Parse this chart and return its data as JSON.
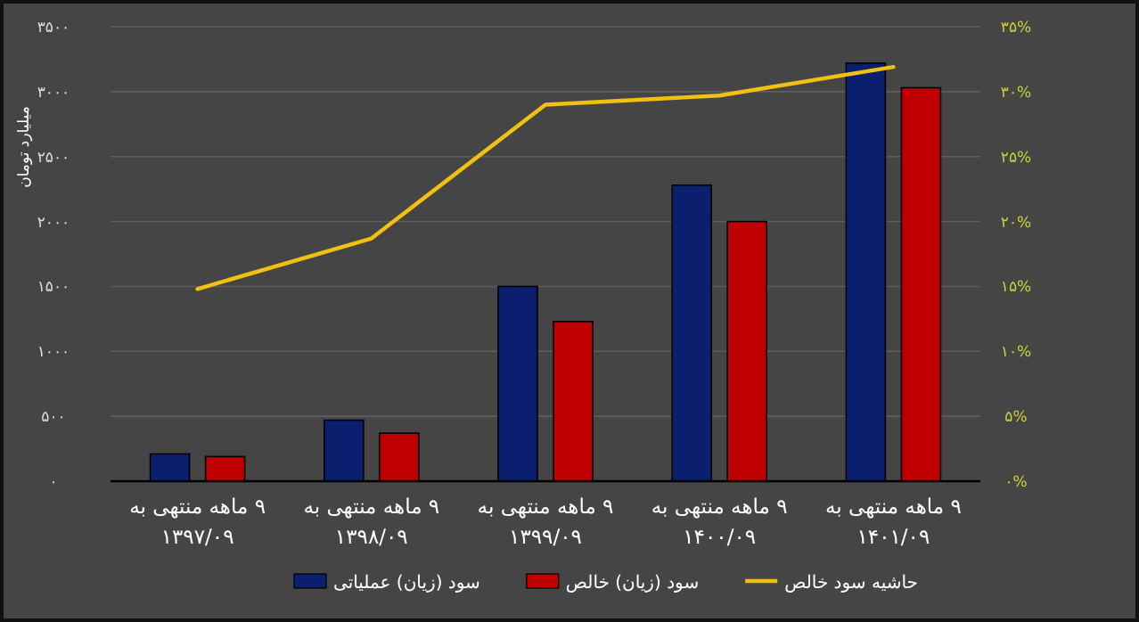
{
  "chart_data": {
    "type": "bar",
    "ylabel": "میلیارد تومان",
    "categories": [
      "۹ ماهه منتهی به ۱۳۹۷/۰۹",
      "۹ ماهه منتهی به ۱۳۹۸/۰۹",
      "۹ ماهه منتهی به ۱۳۹۹/۰۹",
      "۹ ماهه منتهی به ۱۴۰۰/۰۹",
      "۹ ماهه منتهی به ۱۴۰۱/۰۹"
    ],
    "series": [
      {
        "name": "سود (زیان) عملیاتی",
        "color": "#0a1f6e",
        "values": [
          210,
          470,
          1500,
          2280,
          3220
        ]
      },
      {
        "name": "سود (زیان) خالص",
        "color": "#c00000",
        "values": [
          190,
          370,
          1230,
          2000,
          3030
        ]
      },
      {
        "name": "حاشیه سود خالص",
        "type": "line",
        "axis": "y2",
        "color": "#f2c010",
        "values": [
          14.8,
          18.7,
          29.0,
          29.7,
          31.9
        ]
      }
    ],
    "ylim": [
      0,
      3500
    ],
    "yticks": [
      {
        "value": 0,
        "label": "۰"
      },
      {
        "value": 500,
        "label": "۵۰۰"
      },
      {
        "value": 1000,
        "label": "۱۰۰۰"
      },
      {
        "value": 1500,
        "label": "۱۵۰۰"
      },
      {
        "value": 2000,
        "label": "۲۰۰۰"
      },
      {
        "value": 2500,
        "label": "۲۵۰۰"
      },
      {
        "value": 3000,
        "label": "۳۰۰۰"
      },
      {
        "value": 3500,
        "label": "۳۵۰۰"
      }
    ],
    "y2lim": [
      0,
      35
    ],
    "y2ticks": [
      {
        "value": 0,
        "label": "۰%"
      },
      {
        "value": 5,
        "label": "۵%"
      },
      {
        "value": 10,
        "label": "۱۰%"
      },
      {
        "value": 15,
        "label": "۱۵%"
      },
      {
        "value": 20,
        "label": "۲۰%"
      },
      {
        "value": 25,
        "label": "۲۵%"
      },
      {
        "value": 30,
        "label": "۳۰%"
      },
      {
        "value": 35,
        "label": "۳۵%"
      }
    ],
    "grid": "y",
    "legend": "bottom"
  }
}
